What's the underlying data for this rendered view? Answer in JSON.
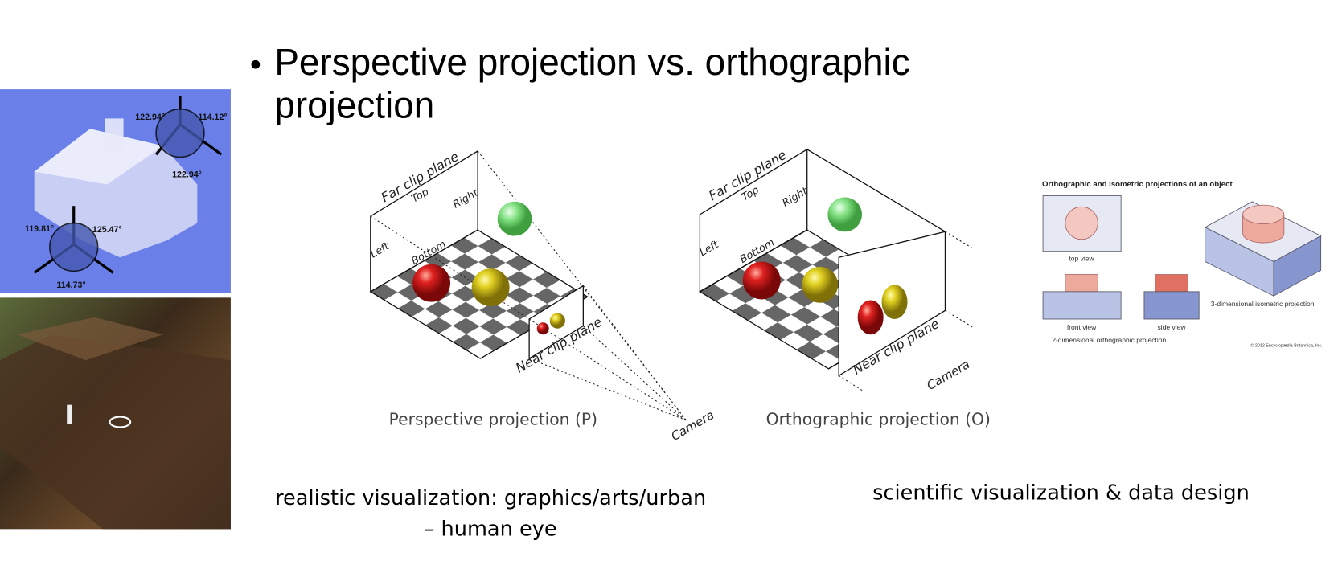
{
  "title": "Perspective projection vs. orthographic projection",
  "house_angles": [
    "122.94°",
    "114.12°",
    "122.94°",
    "119.81°",
    "125.47°",
    "114.73°"
  ],
  "perspective": {
    "far": "Far clip plane",
    "top": "Top",
    "right": "Right",
    "left": "Left",
    "bottom": "Bottom",
    "near": "Near clip plane",
    "camera": "Camera",
    "caption": "Perspective projection (P)"
  },
  "orthographic": {
    "far": "Far clip plane",
    "top": "Top",
    "right": "Right",
    "left": "Left",
    "bottom": "Bottom",
    "near": "Near clip plane",
    "camera": "Camera",
    "caption": "Orthographic projection (O)"
  },
  "isometric": {
    "title": "Orthographic and isometric projections of an object",
    "top_view": "top view",
    "front_view": "front view",
    "side_view": "side view",
    "ortho_2d": "2-dimensional orthographic projection",
    "iso_3d": "3-dimensional isometric projection",
    "copyright": "© 2012 Encyclopædia Britannica, Inc."
  },
  "caption_left": [
    "realistic visualization: graphics/arts/urban",
    "– human eye"
  ],
  "caption_right": "scientific visualization & data design"
}
